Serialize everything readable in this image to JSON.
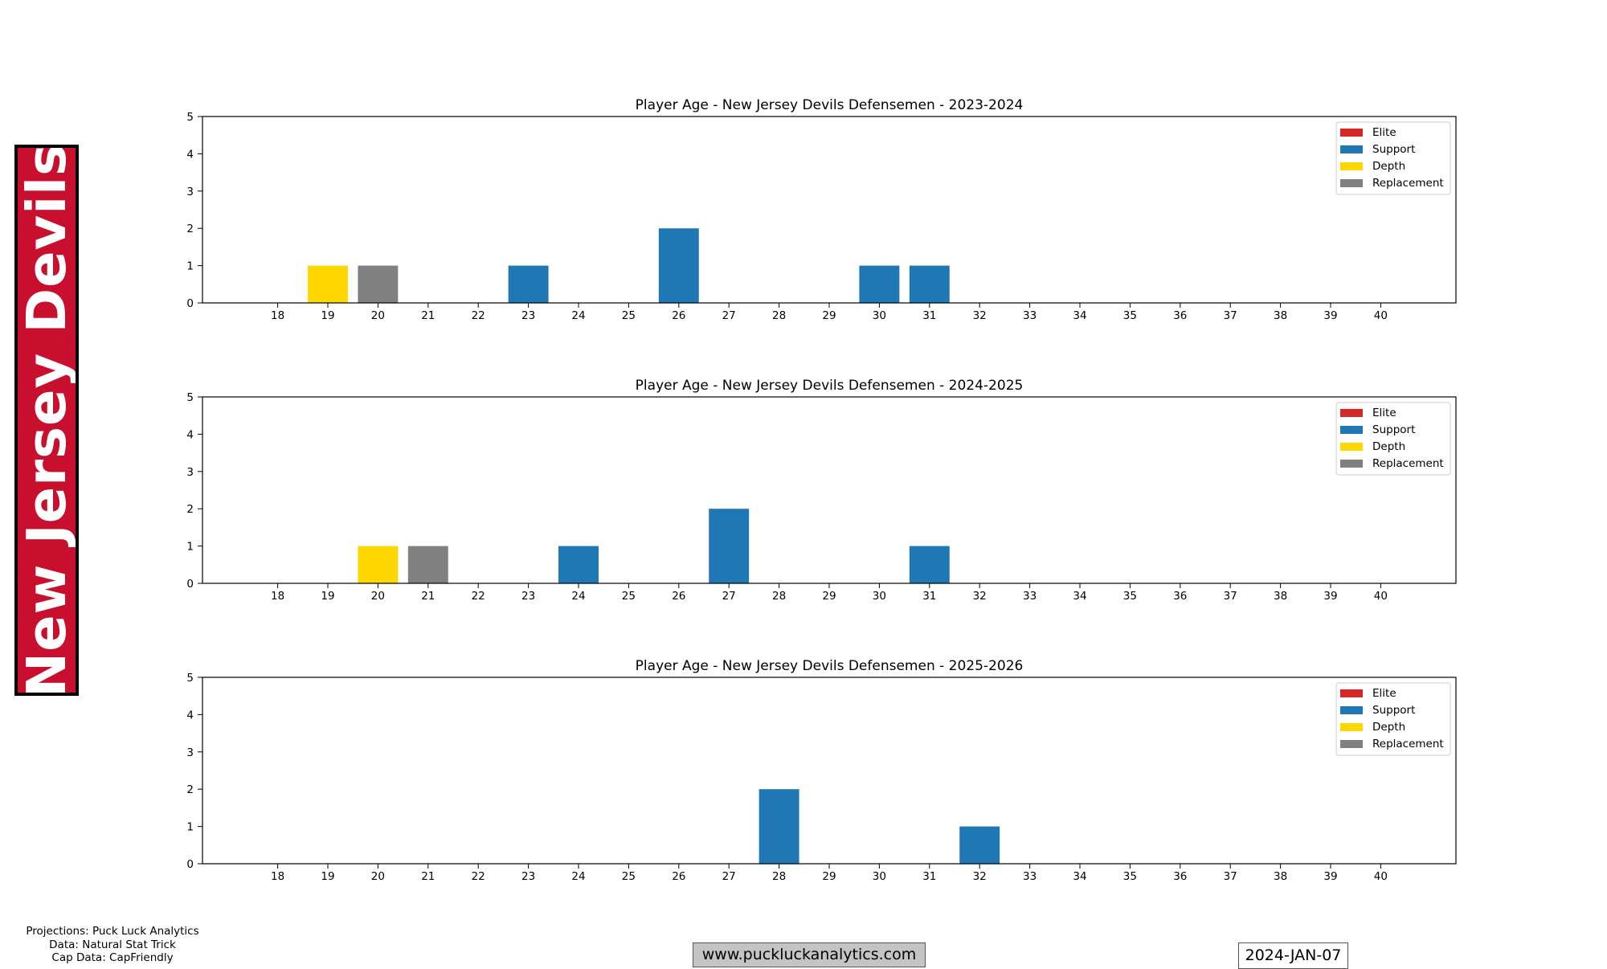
{
  "team_name": "New Jersey Devils",
  "colors": {
    "banner": "#c8102e",
    "Elite": "#d62728",
    "Support": "#1f77b4",
    "Depth": "#ffd700",
    "Replacement": "#808080"
  },
  "credits": [
    "Projections: Puck Luck Analytics",
    "Data: Natural Stat Trick",
    "Cap Data: CapFriendly"
  ],
  "website": "www.puckluckanalytics.com",
  "date": "2024-JAN-07",
  "chart_data": [
    {
      "type": "bar",
      "title": "Player Age - New Jersey Devils Defensemen - 2023-2024",
      "categories": [
        18,
        19,
        20,
        21,
        22,
        23,
        24,
        25,
        26,
        27,
        28,
        29,
        30,
        31,
        32,
        33,
        34,
        35,
        36,
        37,
        38,
        39,
        40
      ],
      "ylim": [
        0,
        5
      ],
      "yticks": [
        0,
        1,
        2,
        3,
        4,
        5
      ],
      "legend": [
        "Elite",
        "Support",
        "Depth",
        "Replacement"
      ],
      "legend_position": "top-right",
      "series": [
        {
          "name": "Elite",
          "values": [
            0,
            0,
            0,
            0,
            0,
            0,
            0,
            0,
            0,
            0,
            0,
            0,
            0,
            0,
            0,
            0,
            0,
            0,
            0,
            0,
            0,
            0,
            0
          ]
        },
        {
          "name": "Support",
          "values": [
            0,
            0,
            0,
            0,
            0,
            1,
            0,
            0,
            2,
            0,
            0,
            0,
            1,
            1,
            0,
            0,
            0,
            0,
            0,
            0,
            0,
            0,
            0
          ]
        },
        {
          "name": "Depth",
          "values": [
            0,
            1,
            0,
            0,
            0,
            0,
            0,
            0,
            0,
            0,
            0,
            0,
            0,
            0,
            0,
            0,
            0,
            0,
            0,
            0,
            0,
            0,
            0
          ]
        },
        {
          "name": "Replacement",
          "values": [
            0,
            0,
            1,
            0,
            0,
            0,
            0,
            0,
            0,
            0,
            0,
            0,
            0,
            0,
            0,
            0,
            0,
            0,
            0,
            0,
            0,
            0,
            0
          ]
        }
      ]
    },
    {
      "type": "bar",
      "title": "Player Age - New Jersey Devils Defensemen - 2024-2025",
      "categories": [
        18,
        19,
        20,
        21,
        22,
        23,
        24,
        25,
        26,
        27,
        28,
        29,
        30,
        31,
        32,
        33,
        34,
        35,
        36,
        37,
        38,
        39,
        40
      ],
      "ylim": [
        0,
        5
      ],
      "yticks": [
        0,
        1,
        2,
        3,
        4,
        5
      ],
      "legend": [
        "Elite",
        "Support",
        "Depth",
        "Replacement"
      ],
      "legend_position": "top-right",
      "series": [
        {
          "name": "Elite",
          "values": [
            0,
            0,
            0,
            0,
            0,
            0,
            0,
            0,
            0,
            0,
            0,
            0,
            0,
            0,
            0,
            0,
            0,
            0,
            0,
            0,
            0,
            0,
            0
          ]
        },
        {
          "name": "Support",
          "values": [
            0,
            0,
            0,
            0,
            0,
            0,
            1,
            0,
            0,
            2,
            0,
            0,
            0,
            1,
            0,
            0,
            0,
            0,
            0,
            0,
            0,
            0,
            0
          ]
        },
        {
          "name": "Depth",
          "values": [
            0,
            0,
            1,
            0,
            0,
            0,
            0,
            0,
            0,
            0,
            0,
            0,
            0,
            0,
            0,
            0,
            0,
            0,
            0,
            0,
            0,
            0,
            0
          ]
        },
        {
          "name": "Replacement",
          "values": [
            0,
            0,
            0,
            1,
            0,
            0,
            0,
            0,
            0,
            0,
            0,
            0,
            0,
            0,
            0,
            0,
            0,
            0,
            0,
            0,
            0,
            0,
            0
          ]
        }
      ]
    },
    {
      "type": "bar",
      "title": "Player Age - New Jersey Devils Defensemen - 2025-2026",
      "categories": [
        18,
        19,
        20,
        21,
        22,
        23,
        24,
        25,
        26,
        27,
        28,
        29,
        30,
        31,
        32,
        33,
        34,
        35,
        36,
        37,
        38,
        39,
        40
      ],
      "ylim": [
        0,
        5
      ],
      "yticks": [
        0,
        1,
        2,
        3,
        4,
        5
      ],
      "legend": [
        "Elite",
        "Support",
        "Depth",
        "Replacement"
      ],
      "legend_position": "top-right",
      "series": [
        {
          "name": "Elite",
          "values": [
            0,
            0,
            0,
            0,
            0,
            0,
            0,
            0,
            0,
            0,
            0,
            0,
            0,
            0,
            0,
            0,
            0,
            0,
            0,
            0,
            0,
            0,
            0
          ]
        },
        {
          "name": "Support",
          "values": [
            0,
            0,
            0,
            0,
            0,
            0,
            0,
            0,
            0,
            0,
            2,
            0,
            0,
            0,
            1,
            0,
            0,
            0,
            0,
            0,
            0,
            0,
            0
          ]
        },
        {
          "name": "Depth",
          "values": [
            0,
            0,
            0,
            0,
            0,
            0,
            0,
            0,
            0,
            0,
            0,
            0,
            0,
            0,
            0,
            0,
            0,
            0,
            0,
            0,
            0,
            0,
            0
          ]
        },
        {
          "name": "Replacement",
          "values": [
            0,
            0,
            0,
            0,
            0,
            0,
            0,
            0,
            0,
            0,
            0,
            0,
            0,
            0,
            0,
            0,
            0,
            0,
            0,
            0,
            0,
            0,
            0
          ]
        }
      ]
    }
  ]
}
